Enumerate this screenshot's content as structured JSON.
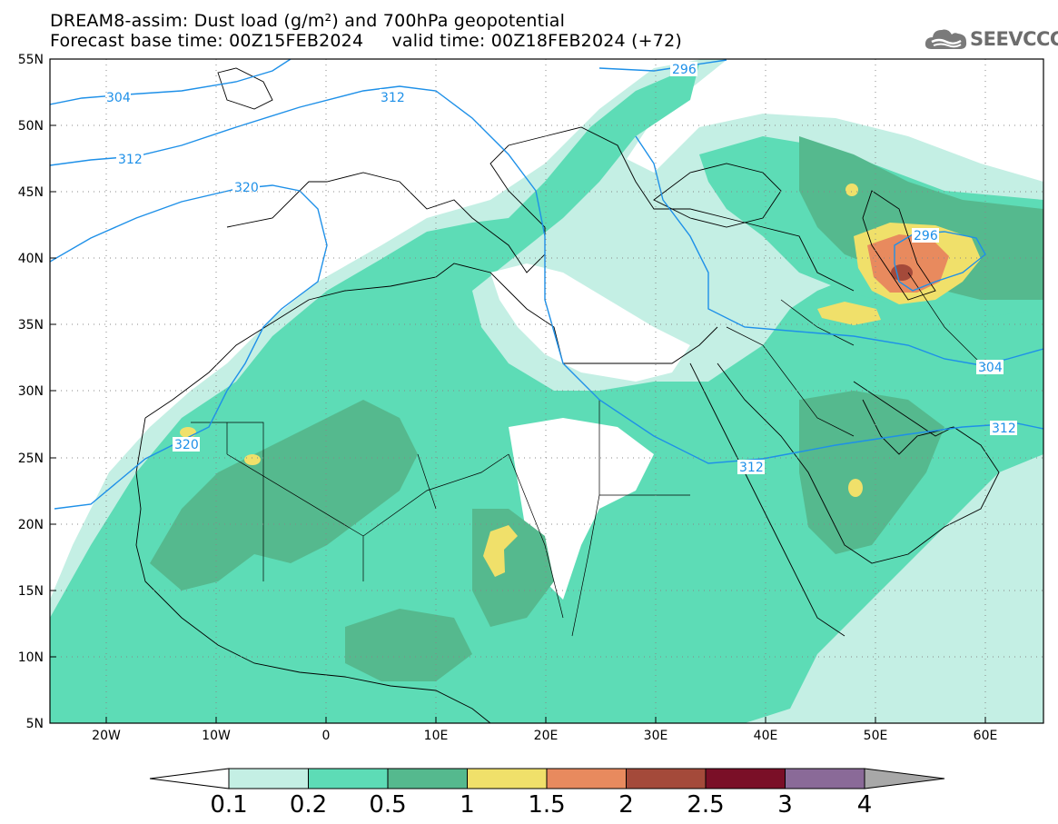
{
  "title_line1": "DREAM8-assim: Dust load (g/m²) and 700hPa geopotential",
  "title_line2": "Forecast base time: 00Z15FEB2024     valid time: 00Z18FEB2024 (+72)",
  "logo_text": "SEEVCCC",
  "logo_icon": "cloud-icon",
  "map": {
    "lat_labels": [
      "55N",
      "50N",
      "45N",
      "40N",
      "35N",
      "30N",
      "25N",
      "20N",
      "15N",
      "10N",
      "5N"
    ],
    "lon_labels": [
      "20W",
      "10W",
      "0",
      "10E",
      "20E",
      "30E",
      "40E",
      "50E",
      "60E"
    ]
  },
  "contours": [
    {
      "label": "304"
    },
    {
      "label": "312"
    },
    {
      "label": "320"
    },
    {
      "label": "296"
    },
    {
      "label": "312"
    },
    {
      "label": "296"
    },
    {
      "label": "304"
    },
    {
      "label": "312"
    },
    {
      "label": "320"
    },
    {
      "label": "312"
    }
  ],
  "colorbar": {
    "labels": [
      "0.1",
      "0.2",
      "0.5",
      "1",
      "1.5",
      "2",
      "2.5",
      "3",
      "4"
    ],
    "colors": [
      "#c4efe4",
      "#5ddcb6",
      "#55b98e",
      "#f0e06a",
      "#e88a5e",
      "#a44a3a",
      "#7a0f27",
      "#8a6a98"
    ],
    "under_color": "#ffffff",
    "over_color": "#a8a8a8"
  }
}
